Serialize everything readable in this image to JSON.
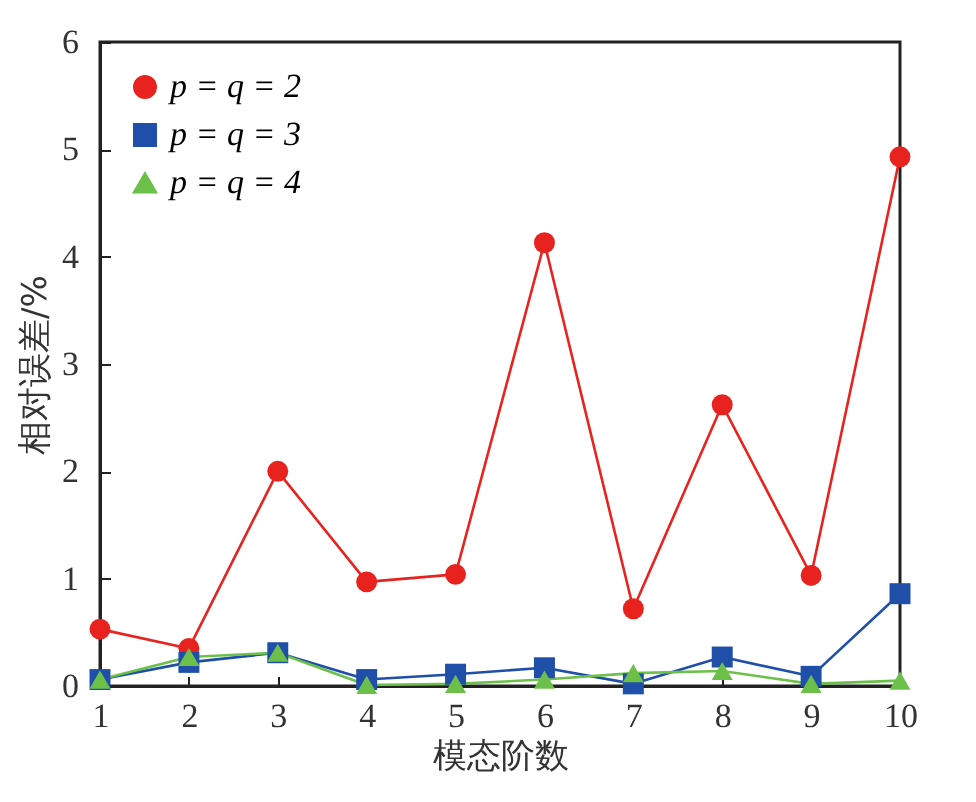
{
  "chart_data": {
    "type": "line",
    "xlabel": "模态阶数",
    "ylabel": "相对误差/%",
    "x": [
      1,
      2,
      3,
      4,
      5,
      6,
      7,
      8,
      9,
      10
    ],
    "xlim": [
      1,
      10
    ],
    "xticks": [
      1,
      2,
      3,
      4,
      5,
      6,
      7,
      8,
      9,
      10
    ],
    "ylim": [
      0,
      6
    ],
    "yticks": [
      0,
      1,
      2,
      3,
      4,
      5,
      6
    ],
    "legend": "top left",
    "grid": false,
    "series": [
      {
        "name": "p = q = 2",
        "color": "#e8231f",
        "marker": "circle",
        "values": [
          0.53,
          0.35,
          2.0,
          0.97,
          1.04,
          4.13,
          0.72,
          2.62,
          1.03,
          4.93
        ]
      },
      {
        "name": "p = q = 3",
        "color": "#1f4fa8",
        "marker": "square",
        "values": [
          0.06,
          0.22,
          0.31,
          0.06,
          0.11,
          0.17,
          0.02,
          0.27,
          0.09,
          0.86
        ]
      },
      {
        "name": "p = q = 4",
        "color": "#6cc04a",
        "marker": "triangle",
        "values": [
          0.06,
          0.27,
          0.31,
          0.01,
          0.02,
          0.06,
          0.12,
          0.14,
          0.02,
          0.05
        ]
      }
    ]
  }
}
